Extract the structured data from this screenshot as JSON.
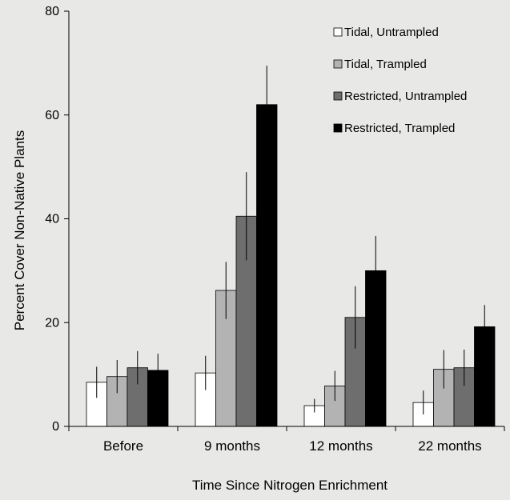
{
  "chart_data": {
    "type": "bar",
    "title": "",
    "xlabel": "Time Since Nitrogen Enrichment",
    "ylabel": "Percent Cover Non-Native Plants",
    "ylim": [
      0,
      80
    ],
    "yticks": [
      0,
      20,
      40,
      60,
      80
    ],
    "grid": false,
    "legend_position": "top-right",
    "categories": [
      "Before",
      "9 months",
      "12 months",
      "22 months"
    ],
    "series": [
      {
        "name": "Tidal, Untrampled",
        "color": "#ffffff",
        "values": [
          8.5,
          10.3,
          4.0,
          4.6
        ],
        "errors": [
          3.0,
          3.3,
          1.3,
          2.3
        ]
      },
      {
        "name": "Tidal, Trampled",
        "color": "#b3b3b3",
        "values": [
          9.6,
          26.2,
          7.8,
          11.0
        ],
        "errors": [
          3.2,
          5.5,
          2.9,
          3.7
        ]
      },
      {
        "name": "Restricted, Untrampled",
        "color": "#6e6e6e",
        "values": [
          11.3,
          40.5,
          21.0,
          11.3
        ],
        "errors": [
          3.2,
          8.5,
          6.0,
          3.5
        ]
      },
      {
        "name": "Restricted, Trampled",
        "color": "#000000",
        "values": [
          10.8,
          62.0,
          30.0,
          19.2
        ],
        "errors": [
          3.2,
          7.5,
          6.7,
          4.2
        ]
      }
    ]
  }
}
